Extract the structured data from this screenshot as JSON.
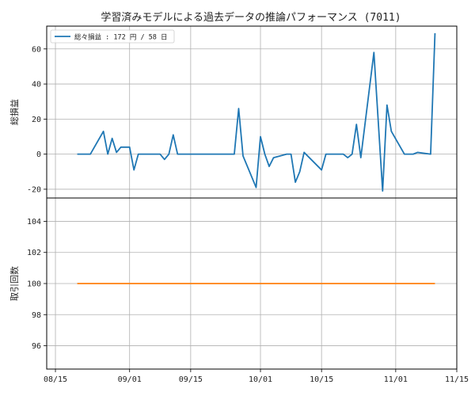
{
  "title": "学習済みモデルによる過去データの推論パフォーマンス (7011)",
  "chart_data": [
    {
      "type": "line",
      "ylabel": "総損益",
      "ylim": [
        -25,
        73
      ],
      "yticks": [
        -20,
        0,
        20,
        40,
        60
      ],
      "grid": true,
      "legend": {
        "position": "top-left",
        "label": "総々損益 : 172 円 / 58 日"
      },
      "series": [
        {
          "color": "#1f77b4",
          "points": [
            [
              "2024-08-20",
              0
            ],
            [
              "2024-08-23",
              0
            ],
            [
              "2024-08-26",
              13
            ],
            [
              "2024-08-27",
              0
            ],
            [
              "2024-08-28",
              9
            ],
            [
              "2024-08-29",
              1
            ],
            [
              "2024-08-30",
              4
            ],
            [
              "2024-09-01",
              4
            ],
            [
              "2024-09-02",
              -9
            ],
            [
              "2024-09-03",
              0
            ],
            [
              "2024-09-05",
              0
            ],
            [
              "2024-09-08",
              0
            ],
            [
              "2024-09-09",
              -3
            ],
            [
              "2024-09-10",
              0
            ],
            [
              "2024-09-11",
              11
            ],
            [
              "2024-09-12",
              0
            ],
            [
              "2024-09-20",
              0
            ],
            [
              "2024-09-25",
              0
            ],
            [
              "2024-09-26",
              26
            ],
            [
              "2024-09-27",
              -1
            ],
            [
              "2024-09-30",
              -19
            ],
            [
              "2024-10-01",
              10
            ],
            [
              "2024-10-02",
              0
            ],
            [
              "2024-10-03",
              -7
            ],
            [
              "2024-10-04",
              -2
            ],
            [
              "2024-10-07",
              0
            ],
            [
              "2024-10-08",
              0
            ],
            [
              "2024-10-09",
              -16
            ],
            [
              "2024-10-10",
              -10
            ],
            [
              "2024-10-11",
              1
            ],
            [
              "2024-10-15",
              -9
            ],
            [
              "2024-10-16",
              0
            ],
            [
              "2024-10-19",
              0
            ],
            [
              "2024-10-20",
              0
            ],
            [
              "2024-10-21",
              -2
            ],
            [
              "2024-10-22",
              0
            ],
            [
              "2024-10-23",
              17
            ],
            [
              "2024-10-24",
              -2
            ],
            [
              "2024-10-27",
              58
            ],
            [
              "2024-10-29",
              -21
            ],
            [
              "2024-10-30",
              28
            ],
            [
              "2024-10-31",
              13
            ],
            [
              "2024-11-03",
              0
            ],
            [
              "2024-11-04",
              0
            ],
            [
              "2024-11-05",
              0
            ],
            [
              "2024-11-06",
              1
            ],
            [
              "2024-11-09",
              0
            ],
            [
              "2024-11-10",
              69
            ]
          ]
        }
      ]
    },
    {
      "type": "line",
      "ylabel": "取引回数",
      "ylim": [
        94.5,
        105.5
      ],
      "yticks": [
        96,
        98,
        100,
        102,
        104
      ],
      "grid": true,
      "series": [
        {
          "color": "#ff7f0e",
          "points": [
            [
              "2024-08-20",
              100
            ],
            [
              "2024-11-10",
              100
            ]
          ]
        }
      ]
    }
  ],
  "x_axis": {
    "range": [
      "2024-08-13",
      "2024-11-15"
    ],
    "ticks": [
      [
        "2024-08-15",
        "08/15"
      ],
      [
        "2024-09-01",
        "09/01"
      ],
      [
        "2024-09-15",
        "09/15"
      ],
      [
        "2024-10-01",
        "10/01"
      ],
      [
        "2024-10-15",
        "10/15"
      ],
      [
        "2024-11-01",
        "11/01"
      ],
      [
        "2024-11-15",
        "11/15"
      ]
    ]
  }
}
